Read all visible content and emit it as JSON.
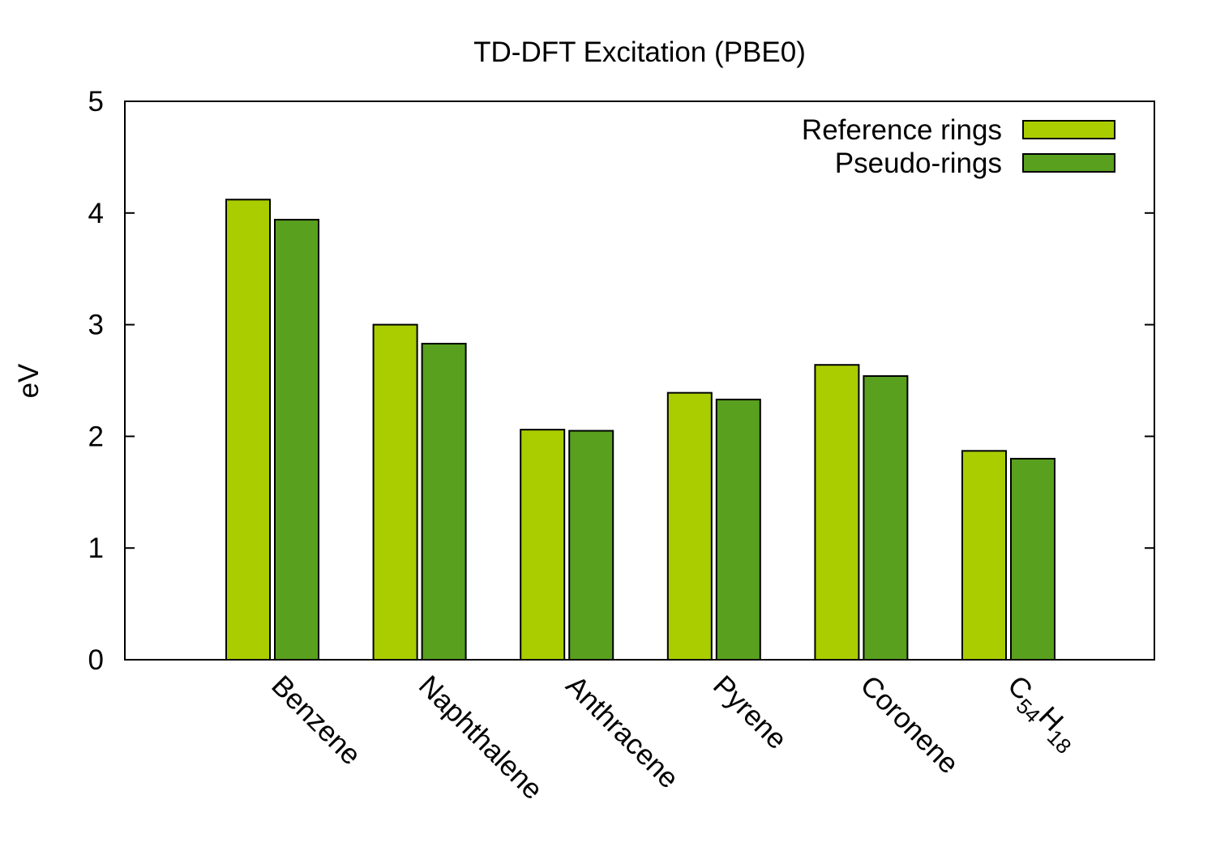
{
  "chart_data": {
    "type": "bar",
    "title": "TD-DFT Excitation (PBE0)",
    "xlabel": "",
    "ylabel": "eV",
    "ylim": [
      0,
      5
    ],
    "yticks": [
      "0",
      "1",
      "2",
      "3",
      "4",
      "5"
    ],
    "grid": false,
    "legend_position": "top-right",
    "categories": [
      {
        "label": "Benzene"
      },
      {
        "label": "Naphthalene"
      },
      {
        "label": "Anthracene"
      },
      {
        "label": "Pyrene"
      },
      {
        "label": "Coronene"
      },
      {
        "label": "C54H18",
        "base": "C",
        "sub1": "54",
        "mid": "H",
        "sub2": "18"
      }
    ],
    "series": [
      {
        "name": "Reference rings",
        "color": "#aacd00",
        "values": [
          4.12,
          3.0,
          2.06,
          2.39,
          2.64,
          1.87
        ]
      },
      {
        "name": "Pseudo-rings",
        "color": "#58a01e",
        "values": [
          3.94,
          2.83,
          2.05,
          2.33,
          2.54,
          1.8
        ]
      }
    ]
  }
}
